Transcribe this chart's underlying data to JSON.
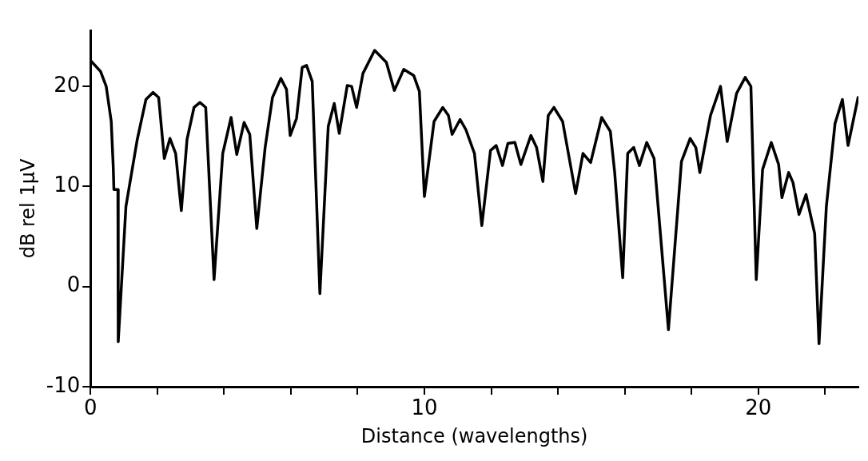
{
  "chart_data": {
    "type": "line",
    "xlabel": "Distance (wavelengths)",
    "ylabel": "dB rel 1µV",
    "xlim": [
      0,
      23
    ],
    "ylim": [
      -10,
      25.6
    ],
    "xticks": [
      0,
      {
        "value": 2,
        "label": null
      },
      {
        "value": 4,
        "label": null
      },
      {
        "value": 6,
        "label": null
      },
      {
        "value": 8,
        "label": null
      },
      10,
      {
        "value": 12,
        "label": null
      },
      {
        "value": 14,
        "label": null
      },
      {
        "value": 16,
        "label": null
      },
      {
        "value": 18,
        "label": null
      },
      20,
      {
        "value": 22,
        "label": null
      }
    ],
    "yticks": [
      -10,
      0,
      10,
      20
    ],
    "marker": "none",
    "line_style": "solid",
    "legend": false,
    "series": [
      {
        "color": "#000000",
        "x": [
          0,
          0.3,
          0.47,
          0.62,
          0.68,
          0.7,
          0.82,
          0.83,
          1.06,
          1.4,
          1.66,
          1.87,
          2.04,
          2.21,
          2.38,
          2.55,
          2.72,
          2.89,
          3.1,
          3.28,
          3.45,
          3.7,
          3.96,
          4.21,
          4.38,
          4.6,
          4.77,
          4.98,
          5.23,
          5.45,
          5.7,
          5.87,
          5.98,
          6.17,
          6.34,
          6.47,
          6.64,
          6.87,
          7.12,
          7.3,
          7.45,
          7.69,
          7.82,
          7.97,
          8.16,
          8.51,
          8.86,
          9.1,
          9.38,
          9.68,
          9.85,
          10,
          10.29,
          10.55,
          10.72,
          10.83,
          11.07,
          11.24,
          11.5,
          11.72,
          11.98,
          12.15,
          12.34,
          12.5,
          12.71,
          12.89,
          13.19,
          13.36,
          13.55,
          13.71,
          13.88,
          14.14,
          14.53,
          14.75,
          14.98,
          15.31,
          15.57,
          15.7,
          15.94,
          16.09,
          16.27,
          16.44,
          16.66,
          16.88,
          17.31,
          17.7,
          17.96,
          18.13,
          18.25,
          18.57,
          18.87,
          19.07,
          19.35,
          19.61,
          19.78,
          19.94,
          20.13,
          20.39,
          20.61,
          20.71,
          20.91,
          21.04,
          21.22,
          21.43,
          21.69,
          21.82,
          22.04,
          22.3,
          22.52,
          22.69,
          22.99
        ],
        "values": [
          22.6,
          21.5,
          20,
          16.5,
          12,
          9.7,
          9.7,
          -5.5,
          8,
          14.7,
          18.7,
          19.4,
          18.9,
          12.8,
          14.8,
          13.3,
          7.6,
          14.7,
          17.9,
          18.4,
          17.9,
          0.7,
          13.3,
          16.9,
          13.2,
          16.4,
          15.2,
          5.8,
          13.9,
          18.9,
          20.8,
          19.7,
          15.1,
          16.8,
          21.9,
          22.1,
          20.5,
          -0.7,
          16,
          18.3,
          15.3,
          20.1,
          20,
          17.9,
          21.3,
          23.6,
          22.4,
          19.6,
          21.7,
          21.1,
          19.5,
          9,
          16.5,
          17.9,
          17.1,
          15.2,
          16.7,
          15.7,
          13.3,
          6.1,
          13.6,
          14.1,
          12.1,
          14.3,
          14.4,
          12.2,
          15.1,
          13.9,
          10.5,
          17.1,
          17.9,
          16.5,
          9.3,
          13.3,
          12.4,
          16.9,
          15.5,
          11.4,
          0.9,
          13.3,
          13.9,
          12.1,
          14.4,
          12.8,
          -4.3,
          12.5,
          14.8,
          13.9,
          11.4,
          17.1,
          20,
          14.5,
          19.3,
          20.9,
          20,
          0.7,
          11.7,
          14.4,
          12.2,
          8.9,
          11.4,
          10.4,
          7.2,
          9.2,
          5.3,
          -5.7,
          8,
          16.3,
          18.7,
          14.1,
          18.9
        ]
      }
    ]
  }
}
